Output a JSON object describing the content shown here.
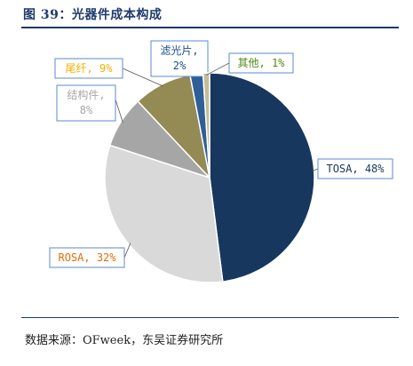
{
  "figure": {
    "title": "图 39：光器件成本构成",
    "source": "数据来源：OFweek，东吴证券研究所"
  },
  "chart_data": {
    "type": "pie",
    "slices": [
      {
        "label": "TOSA",
        "value": 48,
        "value_text": "48%",
        "color": "#17375e",
        "label_color": "#17375e"
      },
      {
        "label": "ROSA",
        "value": 32,
        "value_text": "32%",
        "color": "#d9d9d9",
        "label_color": "#e46c0a"
      },
      {
        "label": "结构件",
        "value": 8,
        "value_text": "8%",
        "color": "#a6a6a6",
        "label_color": "#a6a6a6"
      },
      {
        "label": "尾纤",
        "value": 9,
        "value_text": "9%",
        "color": "#948a54",
        "label_color": "#f0b000"
      },
      {
        "label": "滤光片",
        "value": 2,
        "value_text": "2%",
        "color": "#2e5f96",
        "label_color": "#1f4e8c"
      },
      {
        "label": "其他",
        "value": 1,
        "value_text": "1%",
        "color": "#c4bd97",
        "label_color": "#4f8a10"
      }
    ]
  }
}
